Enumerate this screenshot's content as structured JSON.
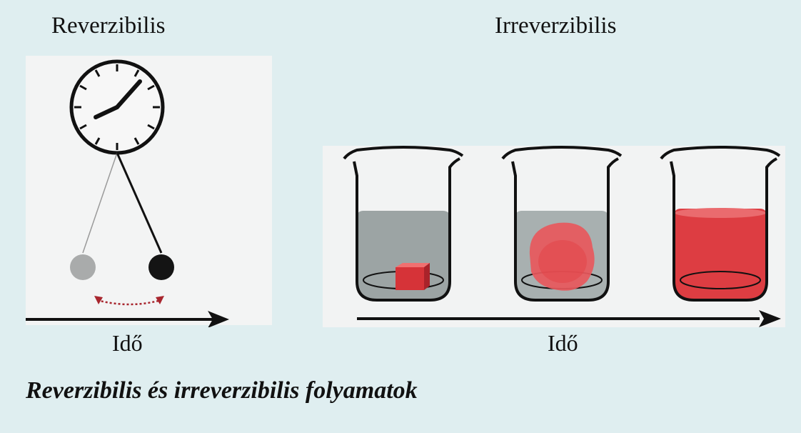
{
  "left": {
    "heading": "Reverzibilis",
    "time_label": "Idő"
  },
  "right": {
    "heading": "Irreverzibilis",
    "time_label": "Idő"
  },
  "caption": "Reverzibilis és irreverzibilis folyamatok",
  "colors": {
    "background": "#dfeef0",
    "panel": "#f2f3f3",
    "liquid_gray": "#9aa2a2",
    "dye_red": "#e03a3e",
    "arrow_dotted": "#a8262e"
  },
  "icons": [
    "clock-icon",
    "pendulum-icon",
    "beaker-icon",
    "time-arrow-icon"
  ]
}
